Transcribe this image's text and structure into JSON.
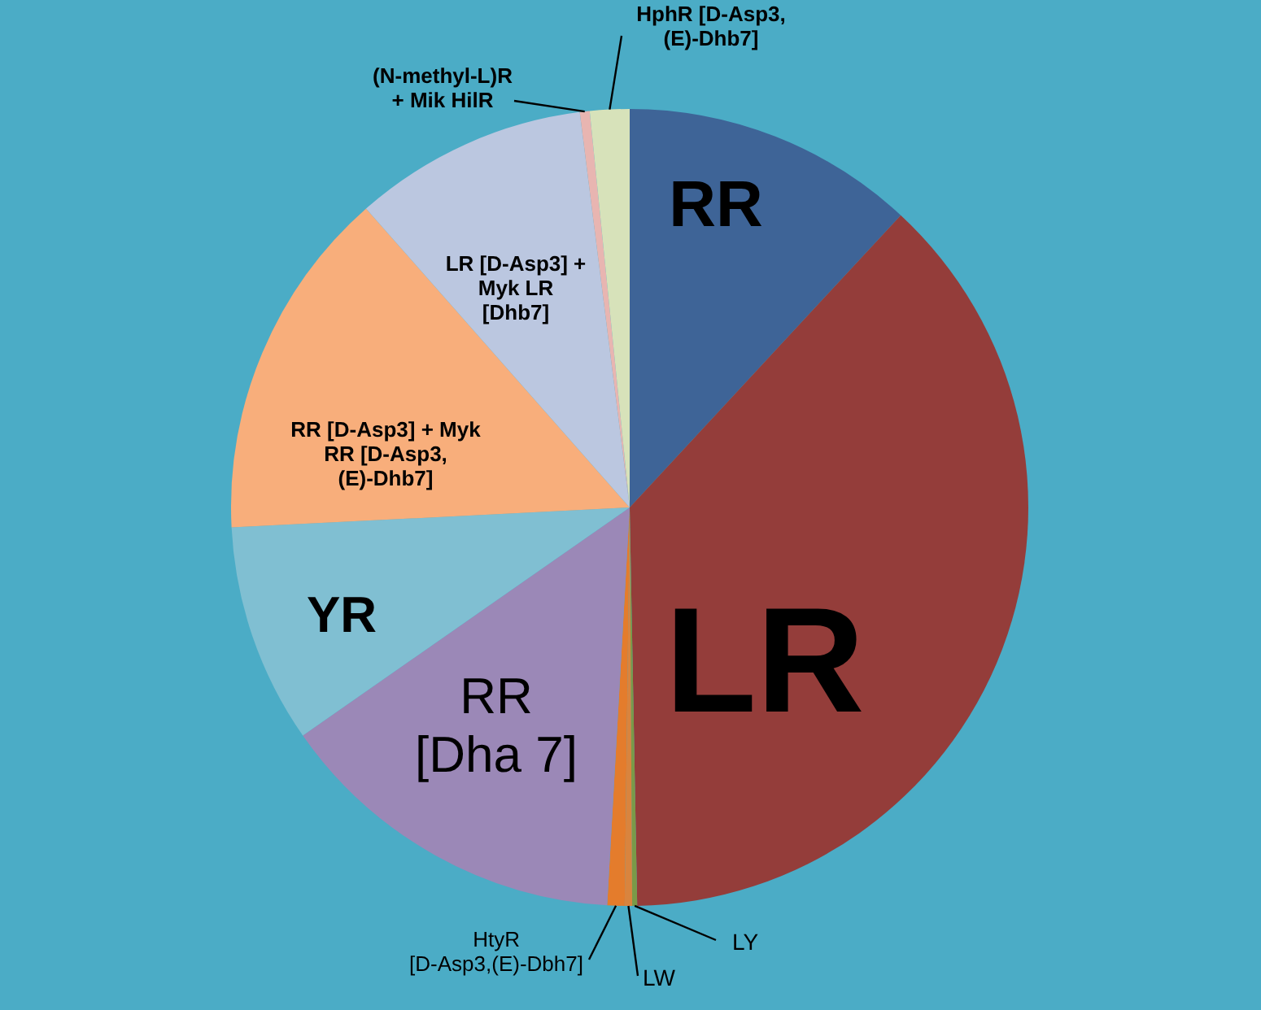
{
  "chart_data": {
    "type": "pie",
    "categories": [
      "RR",
      "LR",
      "LY",
      "LW",
      "HtyR [D-Asp3,(E)-Dbh7]",
      "RR [Dha 7]",
      "YR",
      "RR [D-Asp3] + Myk RR [D-Asp3, (E)-Dhb7]",
      "LR [D-Asp3] + Myk LR [Dhb7]",
      "(N-methyl-L)R + Mik HilR",
      "HphR [D-Asp3, (E)-Dhb7]"
    ],
    "values": [
      11.9,
      37.8,
      0.2,
      0.3,
      0.7,
      14.4,
      8.9,
      14.3,
      9.5,
      0.4,
      1.6
    ],
    "colors": [
      "#3e6497",
      "#943d3a",
      "#7a9a48",
      "#d9843e",
      "#e47c2c",
      "#9b88b7",
      "#80bfd2",
      "#f8ae7b",
      "#bbc7e0",
      "#e8b5b1",
      "#d7e2ba"
    ],
    "legend": false
  }
}
